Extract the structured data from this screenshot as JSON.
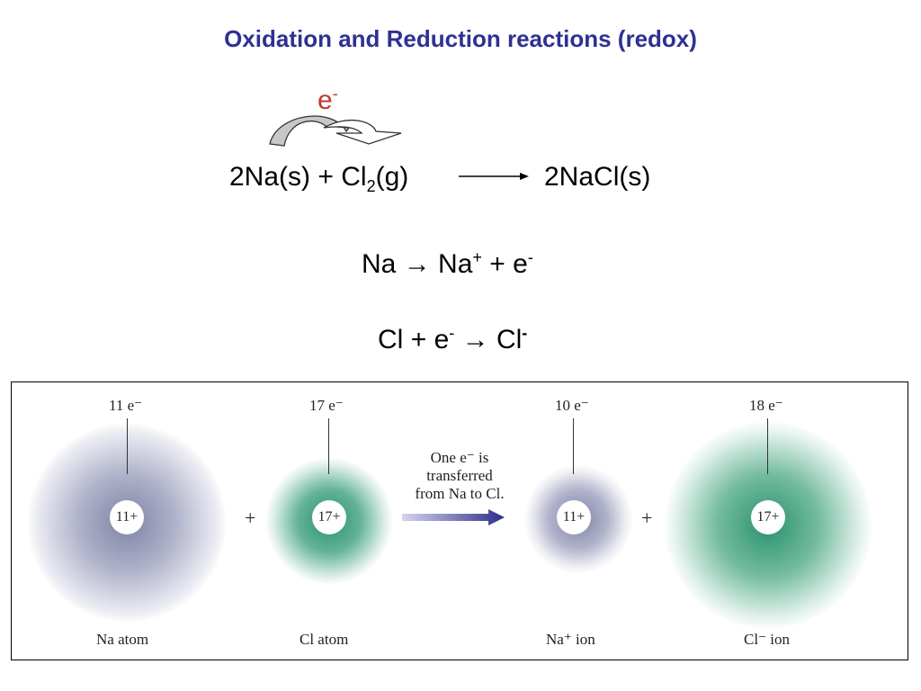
{
  "title": "Oxidation and Reduction reactions (redox)",
  "electron_label": {
    "base": "e",
    "sup": "-"
  },
  "main_equation": {
    "reactant_na": "2Na(s)",
    "plus": "+",
    "reactant_cl": "Cl",
    "reactant_cl_sub": "2",
    "reactant_cl_state": "(g)",
    "product": "2NaCl(s)"
  },
  "half_reaction_1": {
    "lhs": "Na",
    "arrow": "→",
    "ion": "Na",
    "ion_sup": "+",
    "plus": "+",
    "e": "e",
    "e_sup": "-"
  },
  "half_reaction_2": {
    "lhs": "Cl",
    "plus": "+",
    "e": "e",
    "e_sup": "-",
    "arrow": "→",
    "ion": "Cl",
    "ion_sup": "-"
  },
  "figure": {
    "na_atom": {
      "electrons": "11 e⁻",
      "nucleus": "11+",
      "caption": "Na atom"
    },
    "cl_atom": {
      "electrons": "17 e⁻",
      "nucleus": "17+",
      "caption": "Cl atom"
    },
    "na_ion": {
      "electrons": "10 e⁻",
      "nucleus": "11+",
      "caption": "Na⁺ ion"
    },
    "cl_ion": {
      "electrons": "18 e⁻",
      "nucleus": "17+",
      "caption": "Cl⁻ ion"
    },
    "plus_1": "+",
    "plus_2": "+",
    "transfer_text": [
      "One e⁻ is",
      "transferred",
      "from Na to Cl."
    ]
  },
  "colors": {
    "title": "#2e3192",
    "electron": "#c0392b",
    "na_cloud": "#8c8fb0",
    "cl_cloud": "#2f9a7a",
    "transfer_arrow": "#2e2e8a"
  }
}
